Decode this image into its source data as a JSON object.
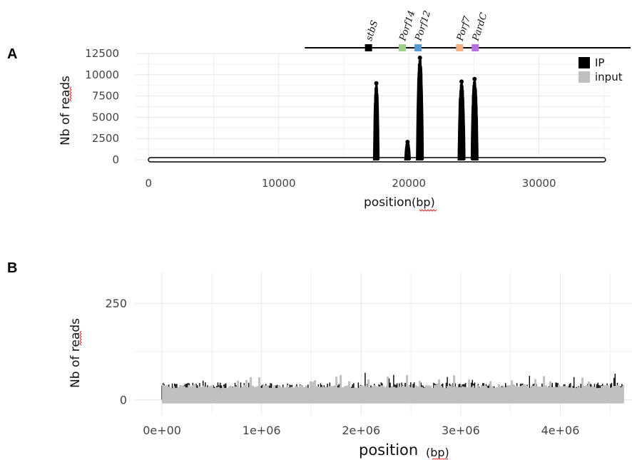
{
  "chart_data": [
    {
      "panel": "A",
      "type": "line",
      "xlabel": "position",
      "xunit": "(bp)",
      "ylabel": "Nb of reads",
      "xlim": [
        -1000,
        35500
      ],
      "ylim": [
        0,
        12500
      ],
      "x_ticks": [
        0,
        10000,
        20000,
        30000
      ],
      "x_tick_labels": [
        "0",
        "10000",
        "20000",
        "30000"
      ],
      "y_ticks": [
        0,
        2500,
        5000,
        7500,
        10000,
        12500
      ],
      "y_tick_labels": [
        "0",
        "2500",
        "5000",
        "7500",
        "10000",
        "12500"
      ],
      "grid": true,
      "legend": {
        "position": "top-right",
        "entries": [
          {
            "label": "IP",
            "color": "#000000"
          },
          {
            "label": "input",
            "color": "#c0c0c0"
          }
        ]
      },
      "series": [
        {
          "name": "IP",
          "color": "#000000",
          "peaks": [
            {
              "x_start": 17300,
              "x_end": 17700,
              "max": 9000
            },
            {
              "x_start": 19700,
              "x_end": 20100,
              "max": 2100
            },
            {
              "x_start": 20600,
              "x_end": 21100,
              "max": 12000
            },
            {
              "x_start": 23800,
              "x_end": 24300,
              "max": 9200
            },
            {
              "x_start": 24800,
              "x_end": 25300,
              "max": 9500
            }
          ]
        },
        {
          "name": "input",
          "color": "#c0c0c0",
          "level": 0
        }
      ],
      "genome_map": {
        "x_start": 12000,
        "x_end": 35500,
        "genes": [
          {
            "name": "stbS",
            "x": 16900,
            "color": "#000000"
          },
          {
            "name": "Porf14",
            "x": 19500,
            "color": "#9fd08c"
          },
          {
            "name": "Porf12",
            "x": 20700,
            "color": "#5b9bd5"
          },
          {
            "name": "Porf7",
            "x": 23900,
            "color": "#f4b183"
          },
          {
            "name": "PardC",
            "x": 25100,
            "color": "#b86fe0"
          }
        ]
      }
    },
    {
      "panel": "B",
      "type": "bar",
      "xlabel": "position",
      "xunit": "(bp)",
      "ylabel": "Nb of reads",
      "xlim": [
        -280000,
        4720000
      ],
      "ylim": [
        -40,
        330
      ],
      "x_ticks": [
        0,
        1000000,
        2000000,
        3000000,
        4000000
      ],
      "x_tick_labels": [
        "0e+00",
        "1e+06",
        "2e+06",
        "3e+06",
        "4e+06"
      ],
      "y_ticks": [
        0,
        250
      ],
      "y_tick_labels": [
        "0",
        "250"
      ],
      "grid": true,
      "series": [
        {
          "name": "IP",
          "color": "#000000",
          "range": [
            0,
            4640000
          ],
          "baseline": 25,
          "typical_max": 45,
          "max": 75
        },
        {
          "name": "input",
          "color": "#c0c0c0",
          "range": [
            0,
            4640000
          ],
          "baseline": 30,
          "typical_max": 45,
          "max": 65
        }
      ]
    }
  ]
}
